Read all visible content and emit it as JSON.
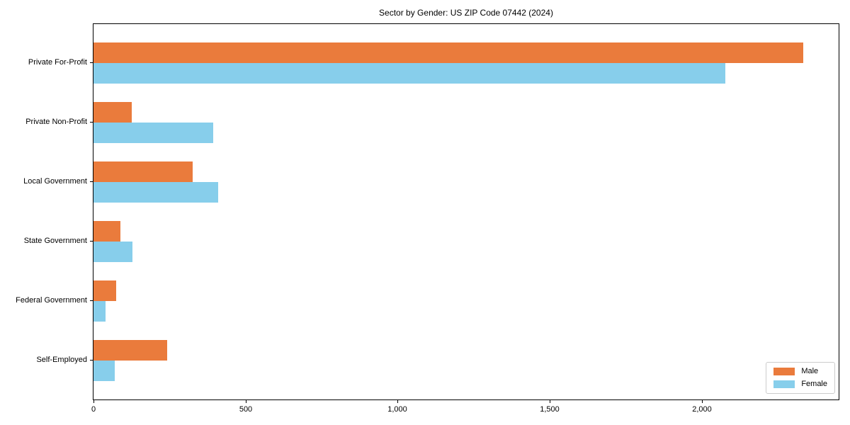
{
  "chart_data": {
    "type": "bar",
    "orientation": "horizontal",
    "title": "Sector by Gender: US ZIP Code 07442 (2024)",
    "categories": [
      "Private For-Profit",
      "Private Non-Profit",
      "Local Government",
      "State Government",
      "Federal Government",
      "Self-Employed"
    ],
    "series": [
      {
        "name": "Male",
        "color": "#ea7b3c",
        "values": [
          2334,
          125,
          325,
          88,
          75,
          242
        ]
      },
      {
        "name": "Female",
        "color": "#87ceeb",
        "values": [
          2077,
          393,
          409,
          128,
          39,
          70
        ]
      }
    ],
    "xlabel": "",
    "ylabel": "",
    "xlim": [
      0,
      2450
    ],
    "x_ticks": [
      0,
      500,
      1000,
      1500,
      2000
    ],
    "x_tick_labels": [
      "0",
      "500",
      "1,000",
      "1,500",
      "2,000"
    ],
    "grid": false,
    "legend": {
      "position": "lower right",
      "entries": [
        "Male",
        "Female"
      ]
    }
  }
}
